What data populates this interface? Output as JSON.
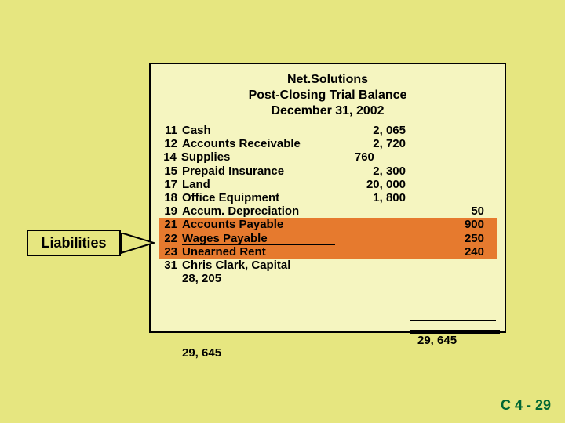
{
  "heading": {
    "line1": "Net.Solutions",
    "line2": "Post-Closing Trial Balance",
    "line3": "December 31, 2002"
  },
  "rows": [
    {
      "num": "11",
      "name": "Cash",
      "debit": "2, 065",
      "credit": ""
    },
    {
      "num": "12",
      "name": "Accounts Receivable",
      "debit": "2, 720",
      "credit": ""
    },
    {
      "num": "14",
      "name": "Supplies",
      "debit": "760",
      "credit": ""
    },
    {
      "num": "15",
      "name": "Prepaid Insurance",
      "debit": "2, 300",
      "credit": ""
    },
    {
      "num": "17",
      "name": "Land",
      "debit": "20, 000",
      "credit": ""
    },
    {
      "num": "18",
      "name": "Office Equipment",
      "debit": "1, 800",
      "credit": ""
    },
    {
      "num": "19",
      "name": "Accum. Depreciation",
      "debit": "",
      "credit": "50"
    },
    {
      "num": "21",
      "name": "Accounts Payable",
      "debit": "",
      "credit": "900"
    },
    {
      "num": "22",
      "name": "Wages Payable",
      "debit": "",
      "credit": "250"
    },
    {
      "num": "23",
      "name": "Unearned Rent",
      "debit": "",
      "credit": "240"
    },
    {
      "num": "31",
      "name": "Chris Clark, Capital",
      "debit": "",
      "credit": ""
    },
    {
      "num": "",
      "name": "28, 205",
      "debit": "",
      "credit": ""
    }
  ],
  "totals": {
    "credit": "29, 645",
    "debit_below": "29, 645"
  },
  "highlighted_indices": [
    7,
    8,
    9
  ],
  "callout_label": "Liabilities",
  "slide_number": "C 4 - 29",
  "colors": {
    "page_bg": "#e6e680",
    "panel_bg": "#f5f5c0",
    "highlight": "#e67a2e",
    "slide_num": "#006633"
  }
}
